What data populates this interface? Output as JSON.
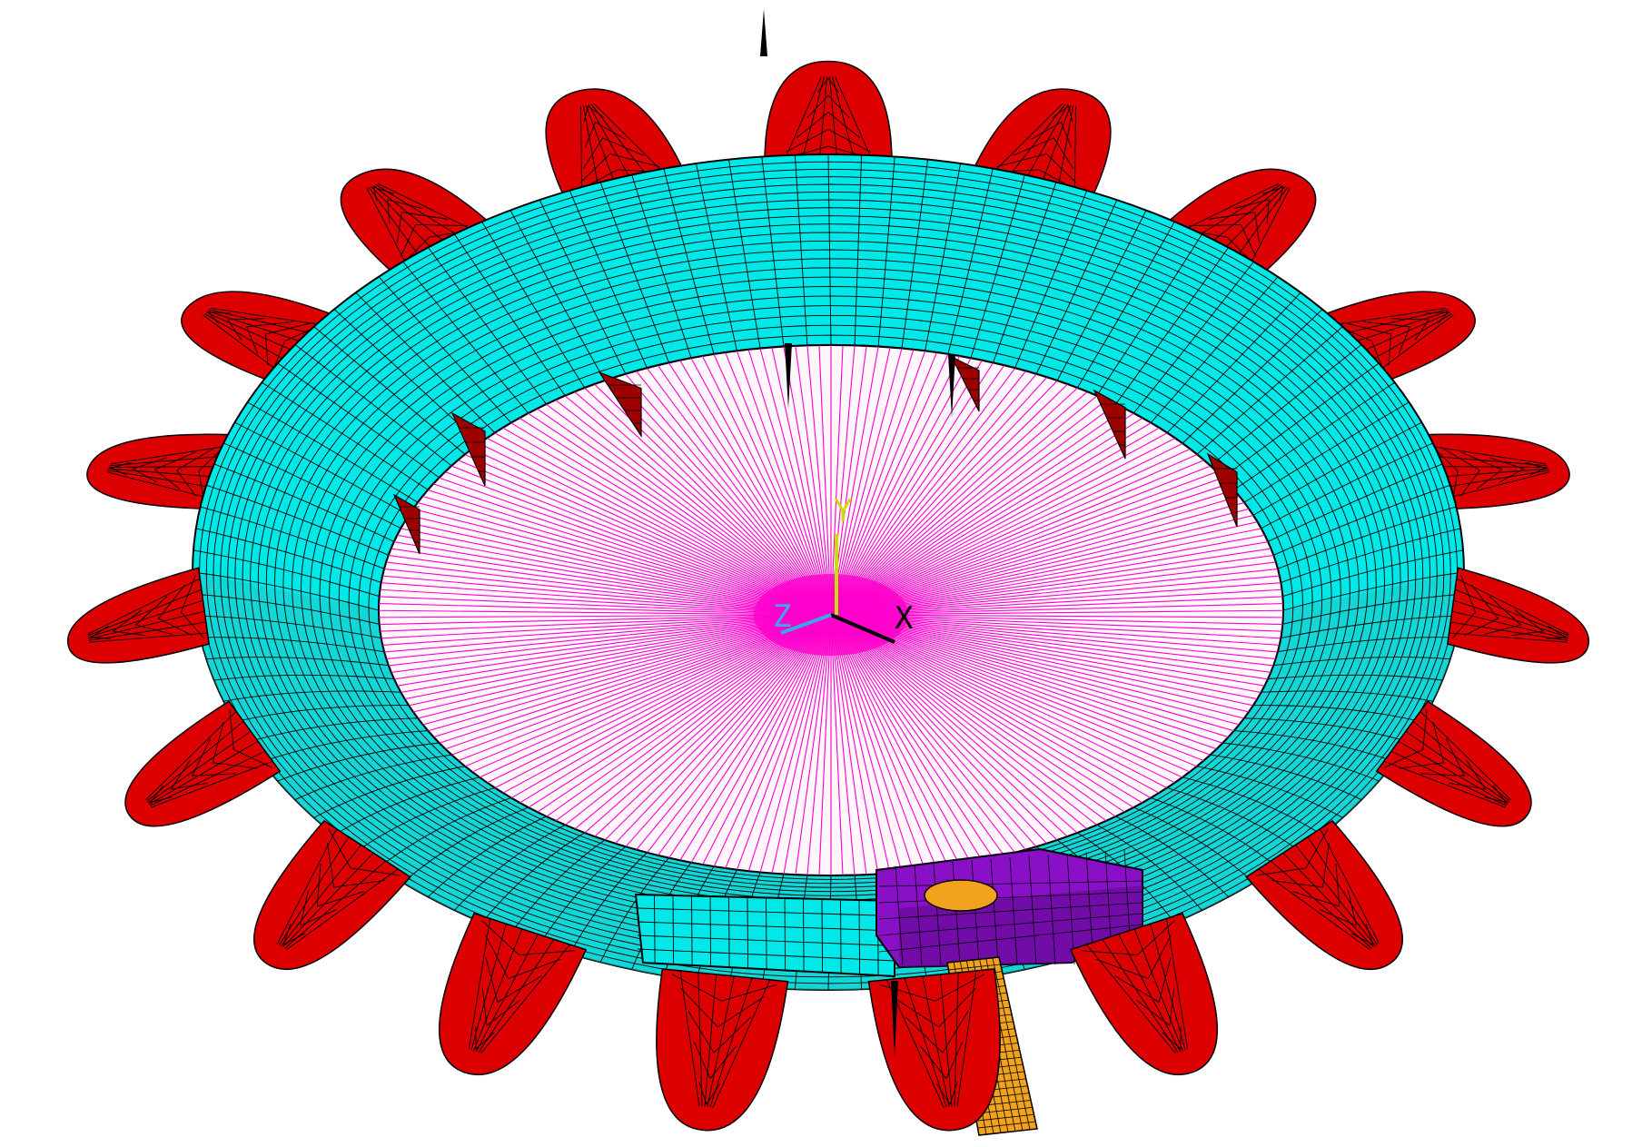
{
  "view": {
    "background": "#ffffff"
  },
  "colors": {
    "ring": "#00e8e8",
    "ring_shade": "#22c6c6",
    "ring_dark": "#17a6a6",
    "fins": "#dd0000",
    "fins_dark": "#9e0000",
    "disk_fill": "#fff7fb",
    "disk_lines": "#ff00cc",
    "block": "#8a10c8",
    "block_dark": "#5d0a8a",
    "tube": "#f2a21c",
    "mesh": "#000000",
    "spike": "#000000",
    "axis_x": "#000000",
    "axis_y": "#c8e000",
    "axis_z": "#3aa8e6"
  },
  "mesh": {
    "ring_radial_divisions": 120,
    "ring_section_divisions": 22,
    "disk_spokes": 240,
    "fin_count": 19
  },
  "triad": {
    "x_label": "X",
    "y_label": "Y",
    "z_label": "Z"
  }
}
